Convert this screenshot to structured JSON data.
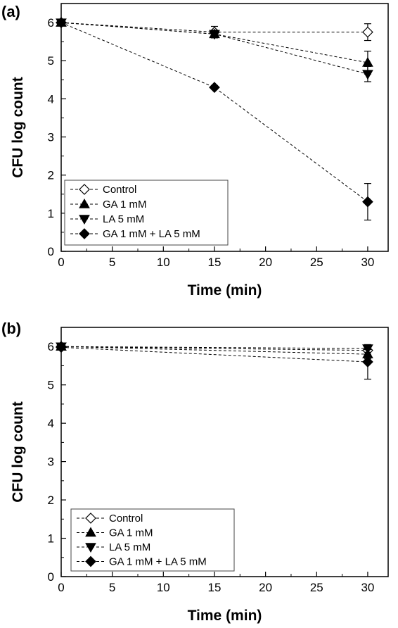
{
  "chart_data": [
    {
      "panel": "(a)",
      "type": "line",
      "xlabel": "Time (min)",
      "ylabel": "CFU log count",
      "xlim": [
        0,
        32
      ],
      "ylim": [
        0,
        6.5
      ],
      "xticks": [
        0,
        5,
        10,
        15,
        20,
        25,
        30
      ],
      "yticks": [
        0,
        1,
        2,
        3,
        4,
        5,
        6
      ],
      "legend_position": "bottom-left",
      "line_style": "dashed",
      "series": [
        {
          "name": "Control",
          "marker": "diamond-open",
          "x": [
            0,
            15,
            30
          ],
          "y": [
            6.0,
            5.75,
            5.75
          ],
          "err": [
            0,
            0.15,
            0.22
          ]
        },
        {
          "name": "GA 1 mM",
          "marker": "triangle-up",
          "x": [
            0,
            15,
            30
          ],
          "y": [
            6.0,
            5.7,
            4.95
          ],
          "err": [
            0,
            0.1,
            0.3
          ]
        },
        {
          "name": "LA 5 mM",
          "marker": "triangle-down",
          "x": [
            0,
            15,
            30
          ],
          "y": [
            6.0,
            5.7,
            4.65
          ],
          "err": [
            0,
            0.1,
            0.2
          ]
        },
        {
          "name": "GA 1 mM + LA 5 mM",
          "marker": "diamond-filled",
          "x": [
            0,
            15,
            30
          ],
          "y": [
            6.0,
            4.3,
            1.3
          ],
          "err": [
            0,
            0.05,
            0.48
          ]
        }
      ]
    },
    {
      "panel": "(b)",
      "type": "line",
      "xlabel": "Time (min)",
      "ylabel": "CFU log count",
      "xlim": [
        0,
        32
      ],
      "ylim": [
        0,
        6.5
      ],
      "xticks": [
        0,
        5,
        10,
        15,
        20,
        25,
        30
      ],
      "yticks": [
        0,
        1,
        2,
        3,
        4,
        5,
        6
      ],
      "legend_position": "bottom-left",
      "line_style": "dashed",
      "series": [
        {
          "name": "Control",
          "marker": "diamond-open",
          "x": [
            0,
            30
          ],
          "y": [
            6.0,
            5.9
          ],
          "err": [
            0,
            0.1
          ]
        },
        {
          "name": "GA 1 mM",
          "marker": "triangle-up",
          "x": [
            0,
            30
          ],
          "y": [
            6.0,
            5.8
          ],
          "err": [
            0,
            0.12
          ]
        },
        {
          "name": "LA 5 mM",
          "marker": "triangle-down",
          "x": [
            0,
            30
          ],
          "y": [
            6.0,
            5.95
          ],
          "err": [
            0,
            0.1
          ]
        },
        {
          "name": "GA 1 mM + LA 5 mM",
          "marker": "diamond-filled",
          "x": [
            0,
            30
          ],
          "y": [
            5.98,
            5.6
          ],
          "err": [
            0,
            0.45
          ]
        }
      ]
    }
  ]
}
